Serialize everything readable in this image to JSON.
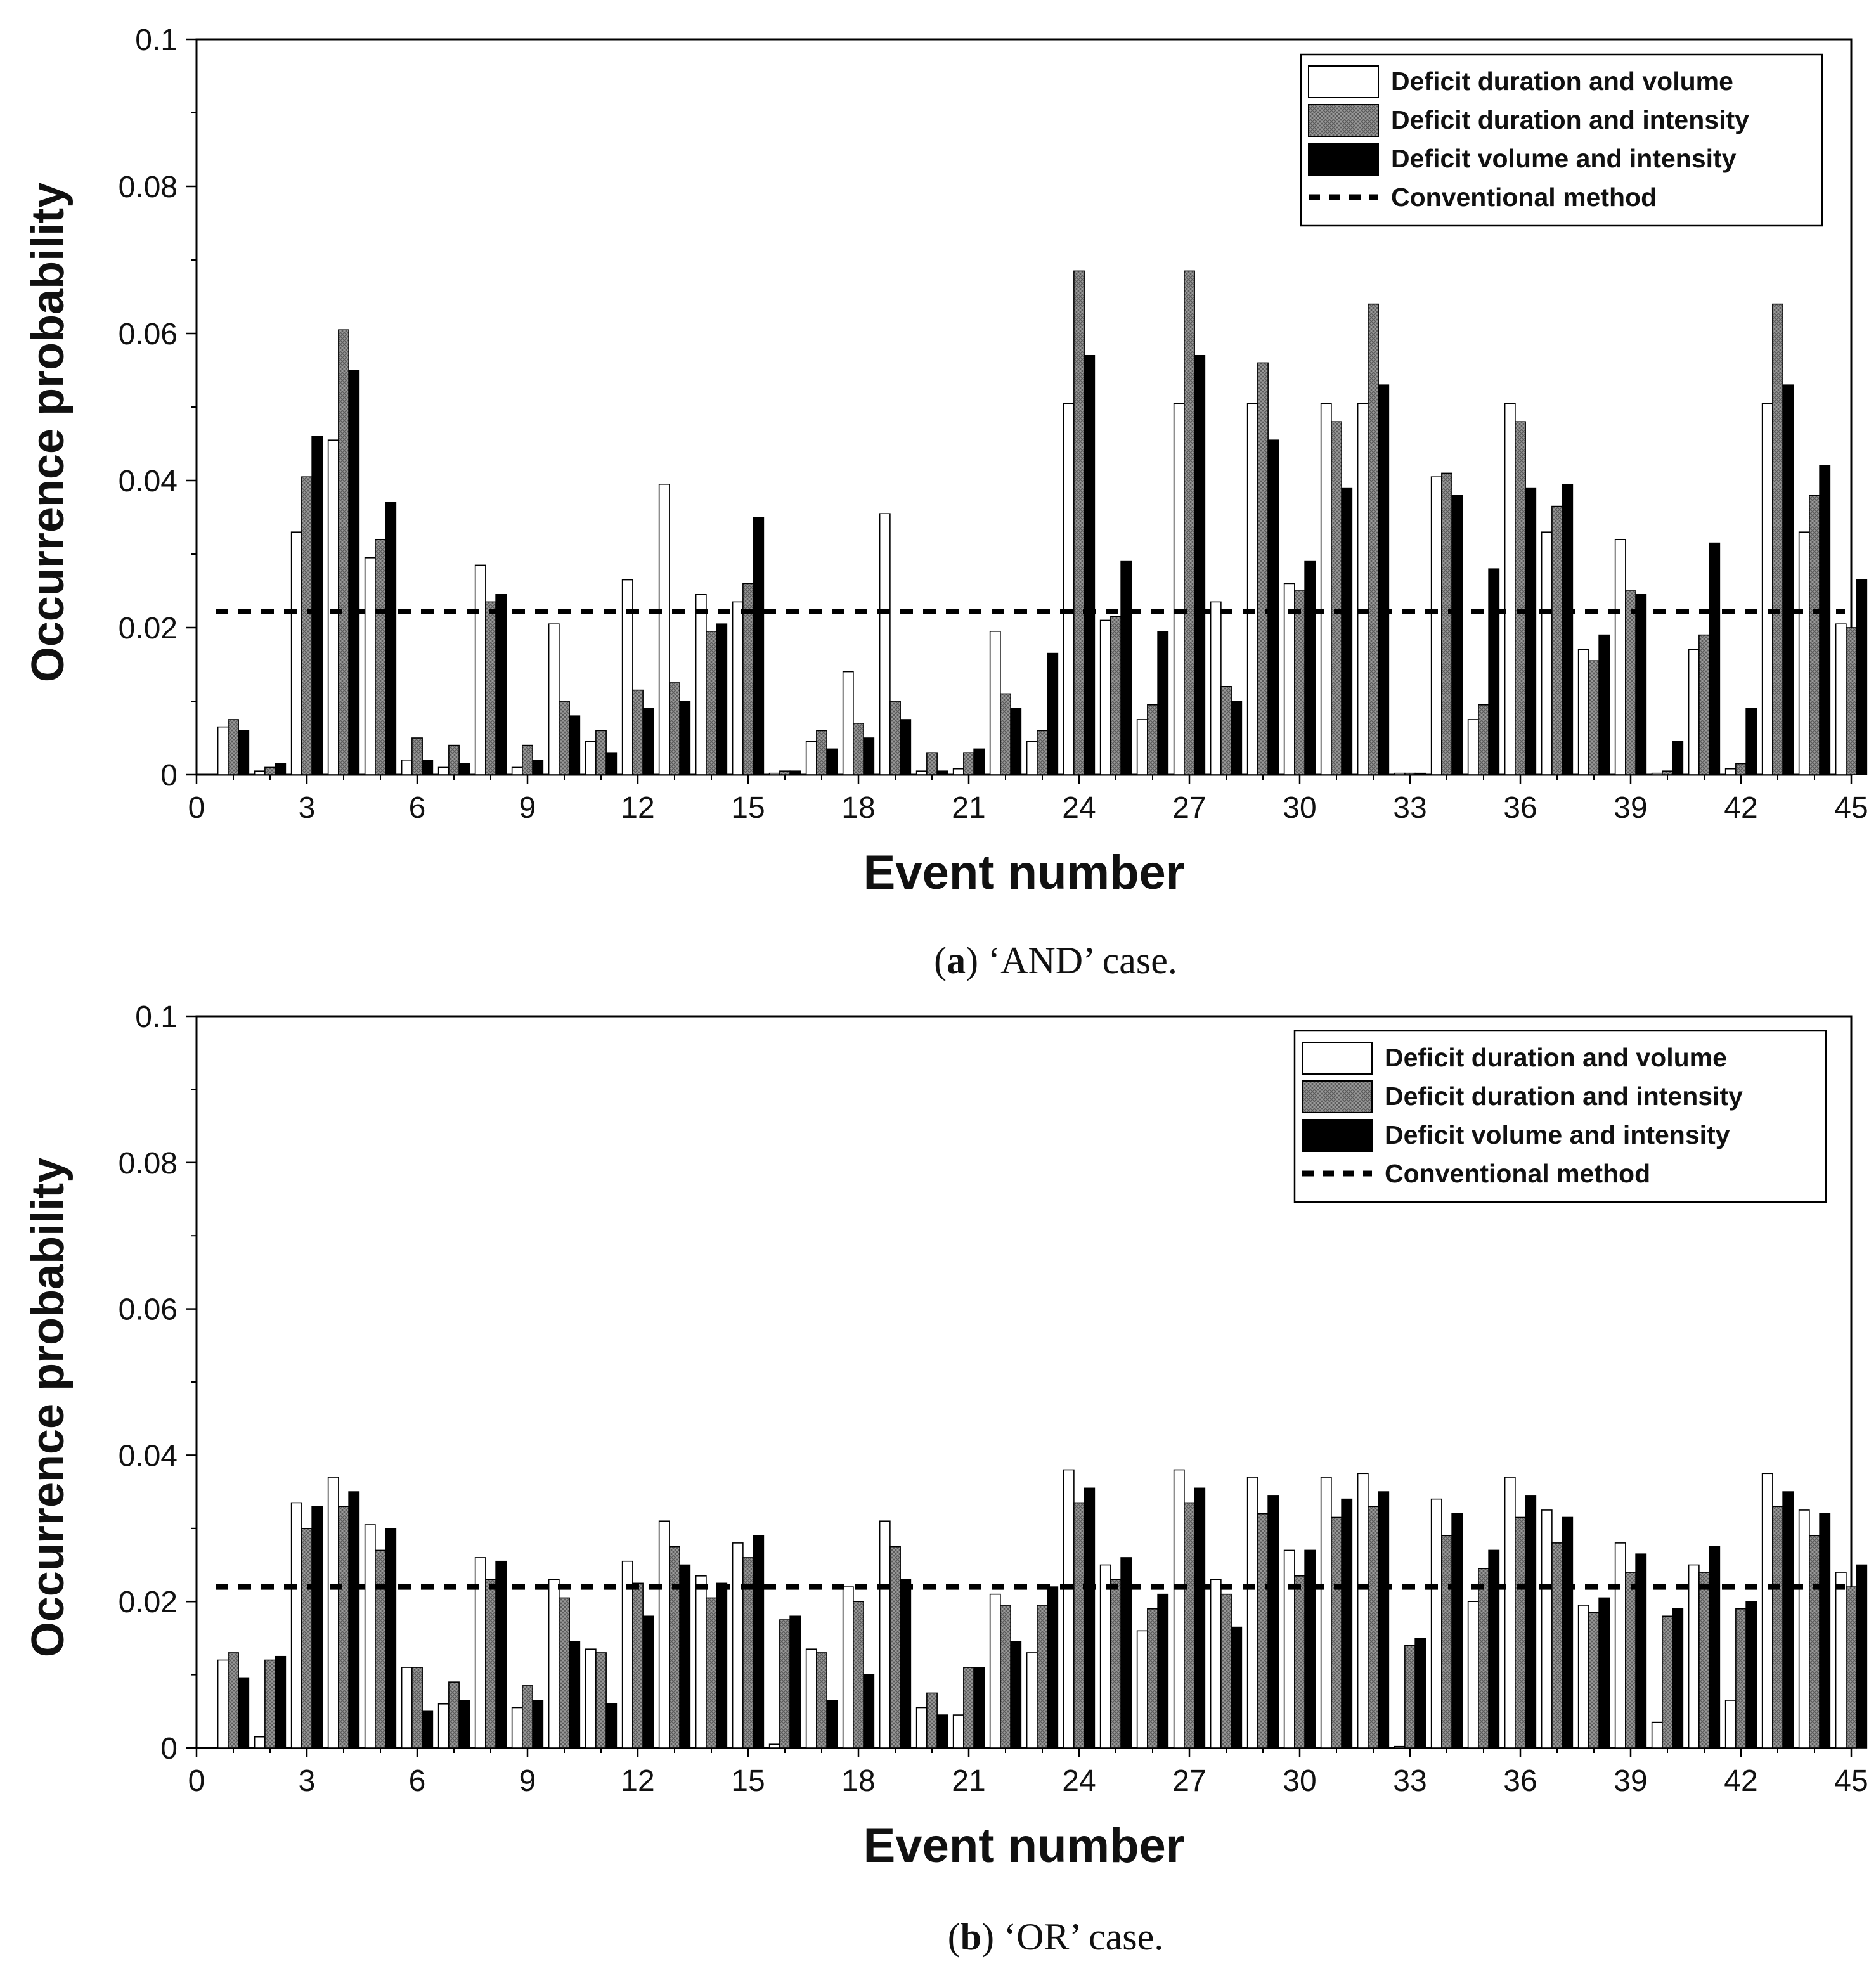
{
  "colors": {
    "series_1": "#ffffff",
    "series_2": "#9a9a9a",
    "series_3": "#000000",
    "axis": "#000000",
    "reference": "#000000"
  },
  "chart_data": [
    {
      "panel": "a",
      "type": "bar",
      "caption": {
        "label": "a",
        "text": "‘AND’ case."
      },
      "xlabel": "Event number",
      "ylabel": "Occurrence probability",
      "xlim": [
        0,
        45
      ],
      "ylim": [
        0,
        0.1
      ],
      "xticks": [
        "0",
        "3",
        "6",
        "9",
        "12",
        "15",
        "18",
        "21",
        "24",
        "27",
        "30",
        "33",
        "36",
        "39",
        "42",
        "45"
      ],
      "yticks": [
        "0",
        "0.02",
        "0.04",
        "0.06",
        "0.08",
        "0.1"
      ],
      "legend": [
        "Deficit duration and volume",
        "Deficit duration and intensity",
        "Deficit volume and intensity",
        "Conventional method"
      ],
      "legend_position": "top-right",
      "reference_line": {
        "name": "Conventional method",
        "value": 0.0222
      },
      "categories": [
        1,
        2,
        3,
        4,
        5,
        6,
        7,
        8,
        9,
        10,
        11,
        12,
        13,
        14,
        15,
        16,
        17,
        18,
        19,
        20,
        21,
        22,
        23,
        24,
        25,
        26,
        27,
        28,
        29,
        30,
        31,
        32,
        33,
        34,
        35,
        36,
        37,
        38,
        39,
        40,
        41,
        42,
        43,
        44,
        45
      ],
      "series": [
        {
          "name": "Deficit duration and volume",
          "values": [
            0.0065,
            0.0005,
            0.033,
            0.0455,
            0.0295,
            0.002,
            0.001,
            0.0285,
            0.001,
            0.0205,
            0.0045,
            0.0265,
            0.0395,
            0.0245,
            0.0235,
            0.0002,
            0.0045,
            0.014,
            0.0355,
            0.0005,
            0.0008,
            0.0195,
            0.0045,
            0.0505,
            0.021,
            0.0075,
            0.0505,
            0.0235,
            0.0505,
            0.026,
            0.0505,
            0.0505,
            0.0002,
            0.0405,
            0.0075,
            0.0505,
            0.033,
            0.017,
            0.032,
            0.0002,
            0.017,
            0.0008,
            0.0505,
            0.033,
            0.0205
          ]
        },
        {
          "name": "Deficit duration and intensity",
          "values": [
            0.0075,
            0.001,
            0.0405,
            0.0605,
            0.032,
            0.005,
            0.004,
            0.0235,
            0.004,
            0.01,
            0.006,
            0.0115,
            0.0125,
            0.0195,
            0.026,
            0.0005,
            0.006,
            0.007,
            0.01,
            0.003,
            0.003,
            0.011,
            0.006,
            0.0685,
            0.0215,
            0.0095,
            0.0685,
            0.012,
            0.056,
            0.025,
            0.048,
            0.064,
            0.0002,
            0.041,
            0.0095,
            0.048,
            0.0365,
            0.0155,
            0.025,
            0.0005,
            0.019,
            0.0015,
            0.064,
            0.038,
            0.02
          ]
        },
        {
          "name": "Deficit volume and intensity",
          "values": [
            0.006,
            0.0015,
            0.046,
            0.055,
            0.037,
            0.002,
            0.0015,
            0.0245,
            0.002,
            0.008,
            0.003,
            0.009,
            0.01,
            0.0205,
            0.035,
            0.0005,
            0.0035,
            0.005,
            0.0075,
            0.0005,
            0.0035,
            0.009,
            0.0165,
            0.057,
            0.029,
            0.0195,
            0.057,
            0.01,
            0.0455,
            0.029,
            0.039,
            0.053,
            0.0002,
            0.038,
            0.028,
            0.039,
            0.0395,
            0.019,
            0.0245,
            0.0045,
            0.0315,
            0.009,
            0.053,
            0.042,
            0.0265
          ]
        }
      ]
    },
    {
      "panel": "b",
      "type": "bar",
      "caption": {
        "label": "b",
        "text": "‘OR’ case."
      },
      "xlabel": "Event number",
      "ylabel": "Occurrence probability",
      "xlim": [
        0,
        45
      ],
      "ylim": [
        0,
        0.1
      ],
      "xticks": [
        "0",
        "3",
        "6",
        "9",
        "12",
        "15",
        "18",
        "21",
        "24",
        "27",
        "30",
        "33",
        "36",
        "39",
        "42",
        "45"
      ],
      "yticks": [
        "0",
        "0.02",
        "0.04",
        "0.06",
        "0.08",
        "0.1"
      ],
      "legend": [
        "Deficit duration and volume",
        "Deficit duration and intensity",
        "Deficit volume and intensity",
        "Conventional method"
      ],
      "legend_position": "top-right",
      "reference_line": {
        "name": "Conventional method",
        "value": 0.022
      },
      "categories": [
        1,
        2,
        3,
        4,
        5,
        6,
        7,
        8,
        9,
        10,
        11,
        12,
        13,
        14,
        15,
        16,
        17,
        18,
        19,
        20,
        21,
        22,
        23,
        24,
        25,
        26,
        27,
        28,
        29,
        30,
        31,
        32,
        33,
        34,
        35,
        36,
        37,
        38,
        39,
        40,
        41,
        42,
        43,
        44,
        45
      ],
      "series": [
        {
          "name": "Deficit duration and volume",
          "values": [
            0.012,
            0.0015,
            0.0335,
            0.037,
            0.0305,
            0.011,
            0.006,
            0.026,
            0.0055,
            0.023,
            0.0135,
            0.0255,
            0.031,
            0.0235,
            0.028,
            0.0005,
            0.0135,
            0.022,
            0.031,
            0.0055,
            0.0045,
            0.021,
            0.013,
            0.038,
            0.025,
            0.016,
            0.038,
            0.023,
            0.037,
            0.027,
            0.037,
            0.0375,
            0.0002,
            0.034,
            0.02,
            0.037,
            0.0325,
            0.0195,
            0.028,
            0.0035,
            0.025,
            0.0065,
            0.0375,
            0.0325,
            0.024
          ]
        },
        {
          "name": "Deficit duration and intensity",
          "values": [
            0.013,
            0.012,
            0.03,
            0.033,
            0.027,
            0.011,
            0.009,
            0.023,
            0.0085,
            0.0205,
            0.013,
            0.0225,
            0.0275,
            0.0205,
            0.026,
            0.0175,
            0.013,
            0.02,
            0.0275,
            0.0075,
            0.011,
            0.0195,
            0.0195,
            0.0335,
            0.023,
            0.019,
            0.0335,
            0.021,
            0.032,
            0.0235,
            0.0315,
            0.033,
            0.014,
            0.029,
            0.0245,
            0.0315,
            0.028,
            0.0185,
            0.024,
            0.018,
            0.024,
            0.019,
            0.033,
            0.029,
            0.022
          ]
        },
        {
          "name": "Deficit volume and intensity",
          "values": [
            0.0095,
            0.0125,
            0.033,
            0.035,
            0.03,
            0.005,
            0.0065,
            0.0255,
            0.0065,
            0.0145,
            0.006,
            0.018,
            0.025,
            0.0225,
            0.029,
            0.018,
            0.0065,
            0.01,
            0.023,
            0.0045,
            0.011,
            0.0145,
            0.022,
            0.0355,
            0.026,
            0.021,
            0.0355,
            0.0165,
            0.0345,
            0.027,
            0.034,
            0.035,
            0.015,
            0.032,
            0.027,
            0.0345,
            0.0315,
            0.0205,
            0.0265,
            0.019,
            0.0275,
            0.02,
            0.035,
            0.032,
            0.025
          ]
        }
      ]
    }
  ]
}
